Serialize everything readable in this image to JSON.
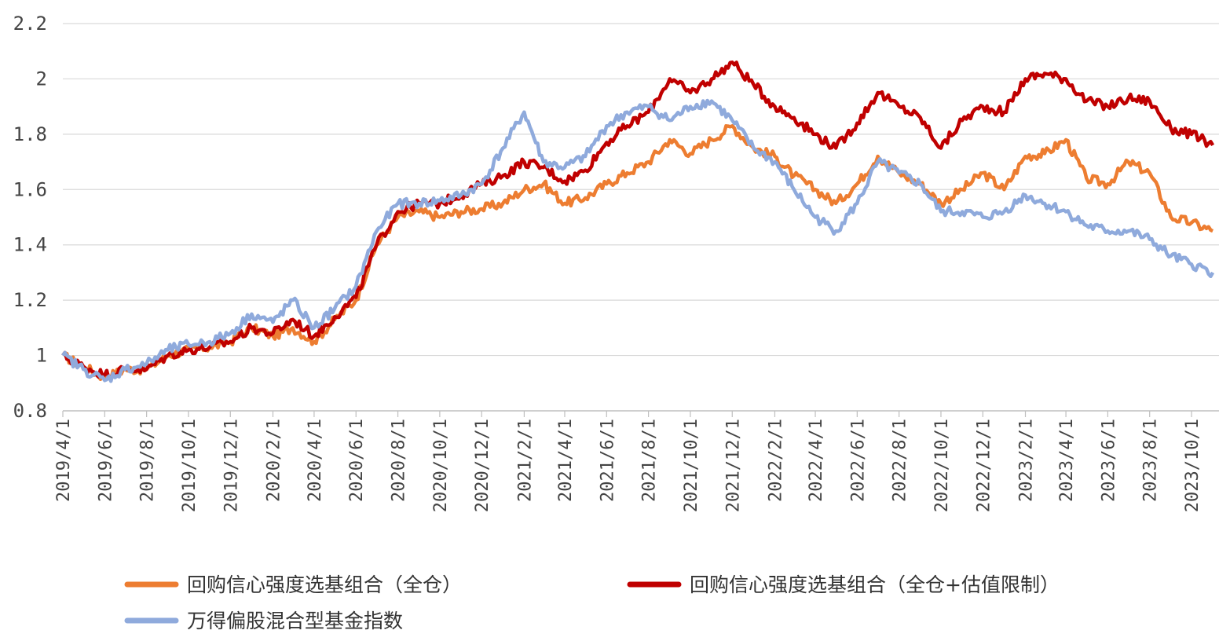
{
  "chart_data": {
    "type": "line",
    "title": "",
    "xlabel": "",
    "ylabel": "",
    "ylim": [
      0.8,
      2.2
    ],
    "yticks": [
      "0.8",
      "1",
      "1.2",
      "1.4",
      "1.6",
      "1.8",
      "2",
      "2.2"
    ],
    "grid": "horizontal",
    "legend_position": "bottom",
    "x_tick_labels": [
      "2019/4/1",
      "2019/6/1",
      "2019/8/1",
      "2019/10/1",
      "2019/12/1",
      "2020/2/1",
      "2020/4/1",
      "2020/6/1",
      "2020/8/1",
      "2020/10/1",
      "2020/12/1",
      "2021/2/1",
      "2021/4/1",
      "2021/6/1",
      "2021/8/1",
      "2021/10/1",
      "2021/12/1",
      "2022/2/1",
      "2022/4/1",
      "2022/6/1",
      "2022/8/1",
      "2022/10/1",
      "2022/12/1",
      "2023/2/1",
      "2023/4/1",
      "2023/6/1",
      "2023/8/1",
      "2023/10/1"
    ],
    "x": [
      "2019/4/1",
      "2019/5/1",
      "2019/6/1",
      "2019/7/1",
      "2019/8/1",
      "2019/9/1",
      "2019/10/1",
      "2019/11/1",
      "2019/12/1",
      "2020/1/1",
      "2020/2/1",
      "2020/3/1",
      "2020/4/1",
      "2020/5/1",
      "2020/6/1",
      "2020/7/1",
      "2020/8/1",
      "2020/9/1",
      "2020/10/1",
      "2020/11/1",
      "2020/12/1",
      "2021/1/1",
      "2021/2/1",
      "2021/3/1",
      "2021/4/1",
      "2021/5/1",
      "2021/6/1",
      "2021/7/1",
      "2021/8/1",
      "2021/9/1",
      "2021/10/1",
      "2021/11/1",
      "2021/12/1",
      "2022/1/1",
      "2022/2/1",
      "2022/3/1",
      "2022/4/1",
      "2022/5/1",
      "2022/6/1",
      "2022/7/1",
      "2022/8/1",
      "2022/9/1",
      "2022/10/1",
      "2022/11/1",
      "2022/12/1",
      "2023/1/1",
      "2023/2/1",
      "2023/3/1",
      "2023/4/1",
      "2023/5/1",
      "2023/6/1",
      "2023/7/1",
      "2023/8/1",
      "2023/9/1",
      "2023/10/1",
      "2023/11/1"
    ],
    "series": [
      {
        "name": "回购信心强度选基组合（全仓）",
        "color": "#ED7D31",
        "values": [
          1.0,
          0.96,
          0.92,
          0.95,
          0.95,
          1.0,
          1.02,
          1.03,
          1.05,
          1.1,
          1.07,
          1.1,
          1.05,
          1.13,
          1.2,
          1.4,
          1.5,
          1.52,
          1.5,
          1.52,
          1.53,
          1.55,
          1.6,
          1.62,
          1.55,
          1.57,
          1.62,
          1.66,
          1.7,
          1.78,
          1.73,
          1.78,
          1.83,
          1.75,
          1.72,
          1.65,
          1.6,
          1.55,
          1.62,
          1.72,
          1.66,
          1.62,
          1.55,
          1.6,
          1.66,
          1.6,
          1.72,
          1.73,
          1.78,
          1.64,
          1.62,
          1.7,
          1.66,
          1.5,
          1.48,
          1.45
        ]
      },
      {
        "name": "回购信心强度选基组合（全仓+估值限制）",
        "color": "#C00000",
        "values": [
          1.0,
          0.96,
          0.93,
          0.95,
          0.95,
          1.0,
          1.02,
          1.03,
          1.05,
          1.1,
          1.08,
          1.13,
          1.07,
          1.14,
          1.21,
          1.4,
          1.52,
          1.55,
          1.55,
          1.58,
          1.62,
          1.65,
          1.7,
          1.68,
          1.63,
          1.67,
          1.77,
          1.83,
          1.88,
          2.0,
          1.95,
          2.0,
          2.06,
          1.98,
          1.9,
          1.86,
          1.8,
          1.75,
          1.84,
          1.95,
          1.9,
          1.86,
          1.75,
          1.85,
          1.9,
          1.88,
          2.0,
          2.02,
          2.0,
          1.92,
          1.9,
          1.93,
          1.92,
          1.82,
          1.8,
          1.76
        ]
      },
      {
        "name": "万得偏股混合型基金指数",
        "color": "#8FAADC",
        "values": [
          1.0,
          0.95,
          0.91,
          0.95,
          0.97,
          1.02,
          1.04,
          1.05,
          1.08,
          1.15,
          1.12,
          1.2,
          1.1,
          1.17,
          1.25,
          1.45,
          1.55,
          1.55,
          1.56,
          1.58,
          1.62,
          1.75,
          1.88,
          1.7,
          1.68,
          1.72,
          1.83,
          1.88,
          1.9,
          1.85,
          1.9,
          1.92,
          1.85,
          1.75,
          1.7,
          1.6,
          1.5,
          1.45,
          1.55,
          1.7,
          1.66,
          1.62,
          1.52,
          1.52,
          1.5,
          1.52,
          1.58,
          1.55,
          1.52,
          1.47,
          1.45,
          1.45,
          1.42,
          1.36,
          1.33,
          1.3
        ]
      }
    ]
  }
}
